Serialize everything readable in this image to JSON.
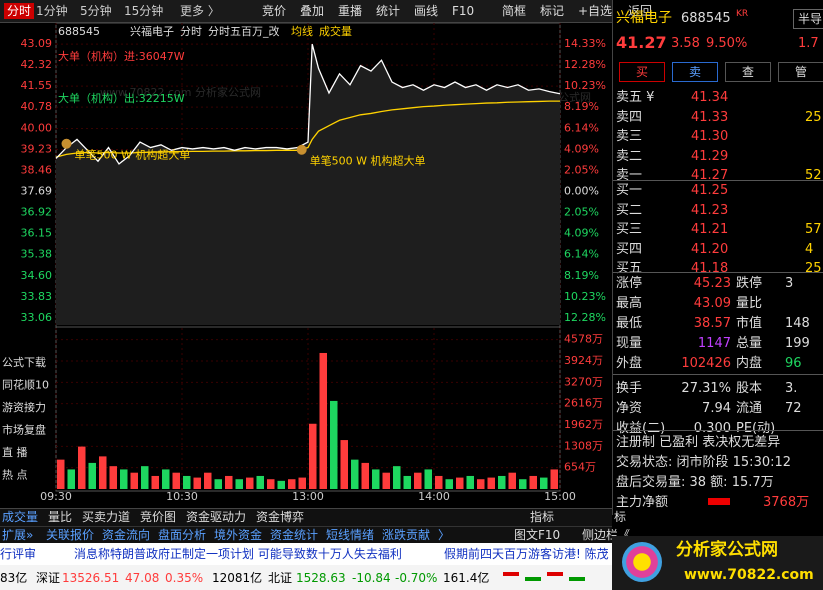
{
  "toolbar": {
    "tabs": [
      "分时",
      "1分钟",
      "5分钟",
      "15分钟",
      "更多 〉"
    ],
    "buttons": [
      "竞价",
      "叠加",
      "重播",
      "统计",
      "画线",
      "F10",
      "简框",
      "标记",
      "+自选",
      "返回"
    ]
  },
  "chart": {
    "header": [
      "688545",
      "兴福电子",
      "分时",
      "分时五百万_改",
      "均线",
      "成交量"
    ],
    "big_in": "大单（机构）进:36047W",
    "big_out": "大单（机构）出:32215W",
    "note": "单笔500 W 机构超大单",
    "side_menu": [
      "公式下载",
      "同花顺10",
      "游资接力",
      "市场复盘",
      "直  播",
      "热  点"
    ],
    "watermark": "www.70822.com 分析家公式网",
    "ylim": [
      32.8,
      43.35
    ],
    "price_ticks": [
      43.09,
      42.32,
      41.55,
      40.78,
      {
        "value": 40,
        "label": "40.00"
      },
      39.23,
      38.46,
      37.69,
      36.92,
      36.15,
      35.38,
      {
        "value": 34.6,
        "label": "34.60"
      },
      33.83,
      33.06
    ],
    "pct_ticks": [
      "14.33%",
      "12.28%",
      "10.23%",
      "8.19%",
      "6.14%",
      "4.09%",
      "2.05%",
      "0.00%",
      "2.05%",
      "4.09%",
      "6.14%",
      "8.19%",
      "10.23%",
      "12.28%"
    ],
    "xlim": [
      0,
      240
    ],
    "time_ticks": [
      {
        "value": 0,
        "label": "09:30"
      },
      {
        "value": 60,
        "label": "10:30"
      },
      {
        "value": 120,
        "label": "13:00"
      },
      {
        "value": 180,
        "label": "14:00"
      },
      {
        "value": 240,
        "label": "15:00"
      }
    ],
    "minutes": [
      0,
      5,
      10,
      15,
      20,
      25,
      30,
      35,
      40,
      45,
      50,
      55,
      60,
      65,
      70,
      75,
      80,
      85,
      90,
      95,
      100,
      105,
      110,
      115,
      120,
      122,
      125,
      130,
      135,
      140,
      145,
      150,
      155,
      160,
      165,
      170,
      175,
      180,
      185,
      190,
      195,
      200,
      205,
      210,
      215,
      220,
      225,
      230,
      235,
      240
    ],
    "price": [
      38.9,
      39.3,
      39.6,
      39.2,
      38.8,
      39.3,
      38.7,
      39.0,
      39.5,
      39.3,
      39.4,
      39.2,
      39.3,
      39.25,
      39.3,
      39.25,
      39.3,
      39.2,
      39.3,
      39.25,
      39.3,
      39.3,
      39.25,
      39.3,
      39.5,
      43.09,
      42.2,
      41.3,
      42.0,
      41.6,
      42.3,
      42.1,
      42.5,
      41.7,
      41.5,
      41.6,
      41.4,
      41.6,
      41.5,
      41.7,
      41.5,
      41.6,
      41.4,
      41.6,
      41.5,
      41.6,
      41.4,
      41.45,
      41.35,
      41.27
    ],
    "avg": [
      38.95,
      39.05,
      39.1,
      39.12,
      39.1,
      39.12,
      39.1,
      39.1,
      39.12,
      39.13,
      39.14,
      39.15,
      39.15,
      39.16,
      39.16,
      39.17,
      39.17,
      39.18,
      39.18,
      39.19,
      39.19,
      39.2,
      39.2,
      39.2,
      39.3,
      39.6,
      39.9,
      40.1,
      40.3,
      40.4,
      40.5,
      40.55,
      40.62,
      40.68,
      40.72,
      40.76,
      40.8,
      40.82,
      40.85,
      40.87,
      40.89,
      40.91,
      40.93,
      40.94,
      40.96,
      40.97,
      40.98,
      40.99,
      41.0,
      41.0
    ],
    "vlim": [
      0,
      4905
    ],
    "vol_ticks": [
      {
        "value": 4578,
        "label": "4578万"
      },
      {
        "value": 3924,
        "label": "3924万"
      },
      {
        "value": 3270,
        "label": "3270万"
      },
      {
        "value": 2616,
        "label": "2616万"
      },
      {
        "value": 1962,
        "label": "1962万"
      },
      {
        "value": 1308,
        "label": "1308万"
      },
      {
        "value": 654,
        "label": "654万"
      }
    ],
    "vol_x": [
      0,
      5,
      10,
      15,
      20,
      25,
      30,
      35,
      40,
      45,
      50,
      55,
      60,
      65,
      70,
      75,
      80,
      85,
      90,
      95,
      100,
      105,
      110,
      115,
      120,
      125,
      130,
      135,
      140,
      145,
      150,
      155,
      160,
      165,
      170,
      175,
      180,
      185,
      190,
      195,
      200,
      205,
      210,
      215,
      220,
      225,
      230,
      235
    ],
    "volume": [
      900,
      600,
      1300,
      800,
      1000,
      700,
      600,
      500,
      700,
      400,
      600,
      500,
      400,
      350,
      500,
      300,
      400,
      300,
      350,
      400,
      300,
      250,
      300,
      350,
      2000,
      4170,
      2700,
      1500,
      900,
      800,
      600,
      500,
      700,
      400,
      500,
      600,
      400,
      300,
      350,
      400,
      300,
      350,
      400,
      500,
      300,
      400,
      350,
      600
    ],
    "volume_up": [
      true,
      false,
      true,
      false,
      true,
      true,
      false,
      true,
      false,
      true,
      false,
      true,
      false,
      true,
      true,
      false,
      true,
      false,
      true,
      false,
      true,
      false,
      true,
      true,
      true,
      true,
      false,
      true,
      false,
      true,
      false,
      true,
      false,
      false,
      true,
      false,
      true,
      false,
      true,
      false,
      true,
      true,
      false,
      true,
      false,
      true,
      false,
      true
    ]
  },
  "quote": {
    "name": "兴福电子",
    "code": "688545",
    "tag": "KR",
    "sector": "半导",
    "price": "41.27",
    "change": "3.58",
    "pct": "9.50%",
    "extra": "1.7",
    "actions": [
      "买",
      "卖",
      "查",
      "管"
    ],
    "asks": [
      [
        "卖五 ¥",
        "41.34"
      ],
      [
        "卖四",
        "41.33",
        "25"
      ],
      [
        "卖三",
        "41.30"
      ],
      [
        "卖二",
        "41.29"
      ],
      [
        "卖一",
        "41.27",
        "52"
      ]
    ],
    "bids": [
      [
        "买一",
        "41.25"
      ],
      [
        "买二",
        "41.23"
      ],
      [
        "买三",
        "41.21",
        "57"
      ],
      [
        "买四",
        "41.20",
        "4"
      ],
      [
        "买五",
        "41.18",
        "25"
      ]
    ],
    "stats": [
      [
        "涨停",
        "45.23",
        "跌停",
        "3"
      ],
      [
        "最高",
        "43.09",
        "量比"
      ],
      [
        "最低",
        "38.57",
        "市值",
        "148"
      ],
      [
        "现量",
        "1147",
        "总量",
        "199"
      ],
      [
        "外盘",
        "102426",
        "内盘",
        "96"
      ],
      [
        "换手",
        "27.31%",
        "股本",
        "3."
      ],
      [
        "净资",
        "7.94",
        "流通",
        "72"
      ],
      [
        "收益(二)",
        "0.300",
        "PE(动)"
      ]
    ],
    "notes": [
      "注册制 已盈利 表决权无差异",
      "交易状态: 闭市阶段 15:30:12",
      "盘后交易量: 38 额: 15.7万"
    ],
    "main_net_label": "主力净额",
    "main_net": "3768万"
  },
  "bottom": {
    "tabs1": [
      "成交量",
      "量比",
      "买卖力道",
      "竞价图",
      "资金驱动力",
      "资金博弈"
    ],
    "right1": [
      "指标",
      "标"
    ],
    "tabs2": [
      "扩展»",
      "关联报价",
      "资金流向",
      "盘面分析",
      "境外资金",
      "资金统计",
      "短线情绪",
      "涨跌贡献",
      "〉",
      "图文F10",
      "侧边栏《"
    ],
    "ticker": [
      "行评审",
      "消息称特朗普政府正制定一项计划 可能导致数十万人失去福利",
      "假期前四天百万游客访港! 陈茂"
    ],
    "index": [
      "83亿",
      "深证",
      "13526.51",
      "47.08",
      "0.35%",
      "12081亿",
      "北证",
      "1528.63",
      "-10.84",
      "-0.70%",
      "161.4亿"
    ],
    "logo": "分析家公式网",
    "logo_url": "www.70822.com"
  }
}
